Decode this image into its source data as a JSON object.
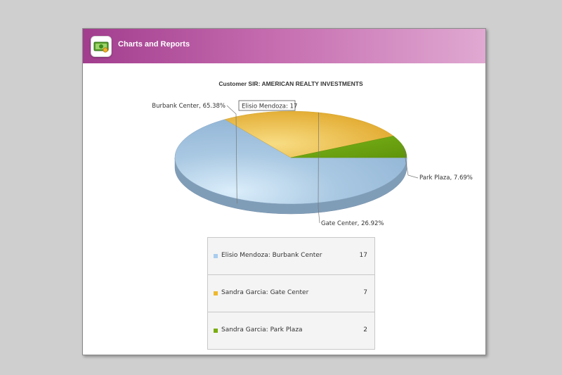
{
  "app": {
    "header_title": "Charts and Reports"
  },
  "chart_data": {
    "type": "pie",
    "title": "Customer SIR: AMERICAN REALTY INVESTMENTS",
    "slices": [
      {
        "label": "Burbank Center",
        "percent_label": "65.38%",
        "value": 17,
        "color": "#97b9d8"
      },
      {
        "label": "Gate Center",
        "percent_label": "26.92%",
        "value": 7,
        "color": "#e9b730"
      },
      {
        "label": "Park Plaza",
        "percent_label": "7.69%",
        "value": 2,
        "color": "#6fa10c"
      }
    ],
    "tooltip": "Elisio Mendoza: 17"
  },
  "legend": {
    "items": [
      {
        "label": "Elisio Mendoza: Burbank Center",
        "value": "17",
        "color": "#a9cdee"
      },
      {
        "label": "Sandra Garcia: Gate Center",
        "value": "7",
        "color": "#edb92e"
      },
      {
        "label": "Sandra Garcia: Park Plaza",
        "value": "2",
        "color": "#7aad10"
      }
    ]
  }
}
